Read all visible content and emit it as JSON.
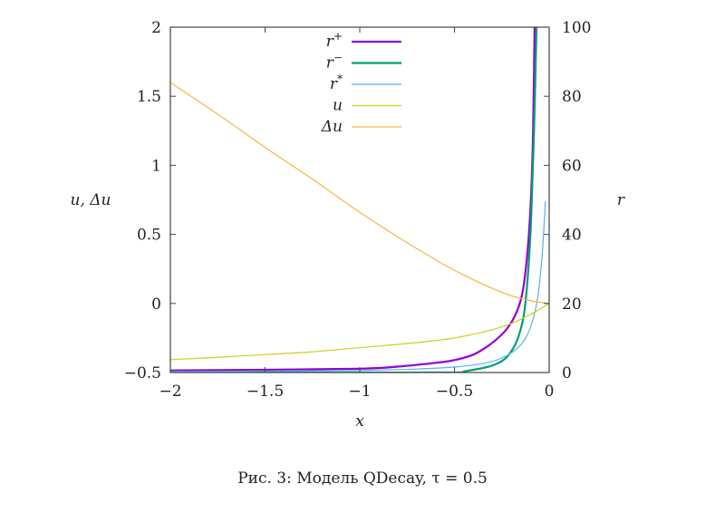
{
  "caption": "Рис. 3: Модель QDecay, τ = 0.5",
  "chart_data": {
    "type": "line",
    "title": "",
    "xlabel": "x",
    "ylabel_left": "u, Δu",
    "ylabel_right": "r",
    "xlim": [
      -2,
      0
    ],
    "ylim_left": [
      -0.5,
      2
    ],
    "ylim_right": [
      0,
      100
    ],
    "xticks": [
      -2,
      -1.5,
      -1,
      -0.5,
      0
    ],
    "xtick_labels": [
      "−2",
      "−1.5",
      "−1",
      "−0.5",
      "0"
    ],
    "yticks_left": [
      -0.5,
      0,
      0.5,
      1,
      1.5,
      2
    ],
    "ytick_labels_left": [
      "−0.5",
      "0",
      "0.5",
      "1",
      "1.5",
      "2"
    ],
    "yticks_right": [
      0,
      20,
      40,
      60,
      80,
      100
    ],
    "ytick_labels_right": [
      "0",
      "20",
      "40",
      "60",
      "80",
      "100"
    ],
    "grid": false,
    "legend_position": "top-center",
    "series": [
      {
        "name": "r⁺",
        "legend_base": "r",
        "legend_sup": "+",
        "axis": "right",
        "color": "#9400d3",
        "x": [
          -2,
          -1.5,
          -1,
          -0.8,
          -0.6,
          -0.5,
          -0.4,
          -0.32,
          -0.26,
          -0.22,
          -0.18,
          -0.15,
          -0.13,
          -0.11,
          -0.095,
          -0.085,
          -0.077
        ],
        "y": [
          0.6,
          0.8,
          1.1,
          1.7,
          2.8,
          3.6,
          5.2,
          7.8,
          10.5,
          12.9,
          16.5,
          21.0,
          27.0,
          38.0,
          52.0,
          70.0,
          100.0
        ]
      },
      {
        "name": "r⁻",
        "legend_base": "r",
        "legend_sup": "−",
        "axis": "right",
        "color": "#009e73",
        "x": [
          -2,
          -1.5,
          -1,
          -0.5,
          -0.45,
          -0.4,
          -0.35,
          -0.3,
          -0.25,
          -0.22,
          -0.18,
          -0.15,
          -0.13,
          -0.11,
          -0.095,
          -0.08,
          -0.067
        ],
        "y": [
          0,
          0,
          0,
          0,
          0.3,
          0.8,
          1.3,
          2.0,
          3.3,
          4.7,
          8.0,
          12.6,
          18.0,
          30.0,
          45.0,
          70.0,
          100.0
        ]
      },
      {
        "name": "r*",
        "legend_base": "r",
        "legend_sup": "*",
        "axis": "right",
        "color": "#56b4e9",
        "x": [
          -2,
          -1.5,
          -1,
          -0.7,
          -0.5,
          -0.35,
          -0.25,
          -0.18,
          -0.13,
          -0.09,
          -0.06,
          -0.04,
          -0.03,
          -0.02
        ],
        "y": [
          0.3,
          0.4,
          0.6,
          1.0,
          1.6,
          2.6,
          4.2,
          6.5,
          9.5,
          14.5,
          22.0,
          32.0,
          40.0,
          49.6
        ]
      },
      {
        "name": "u",
        "legend_base": "u",
        "legend_sup": "",
        "axis": "left",
        "color": "#cfcf20",
        "x": [
          -2,
          -1.75,
          -1.5,
          -1.25,
          -1,
          -0.75,
          -0.5,
          -0.25,
          -0.1,
          0
        ],
        "y": [
          -0.407,
          -0.39,
          -0.37,
          -0.35,
          -0.32,
          -0.29,
          -0.25,
          -0.17,
          -0.08,
          0
        ]
      },
      {
        "name": "Δu",
        "legend_base": "Δu",
        "legend_sup": "",
        "axis": "left",
        "color": "#f5b642",
        "x": [
          -2,
          -1.75,
          -1.5,
          -1.25,
          -1,
          -0.75,
          -0.5,
          -0.25,
          -0.1,
          0
        ],
        "y": [
          1.6,
          1.37,
          1.13,
          0.9,
          0.66,
          0.44,
          0.24,
          0.08,
          0.02,
          0
        ]
      }
    ]
  }
}
